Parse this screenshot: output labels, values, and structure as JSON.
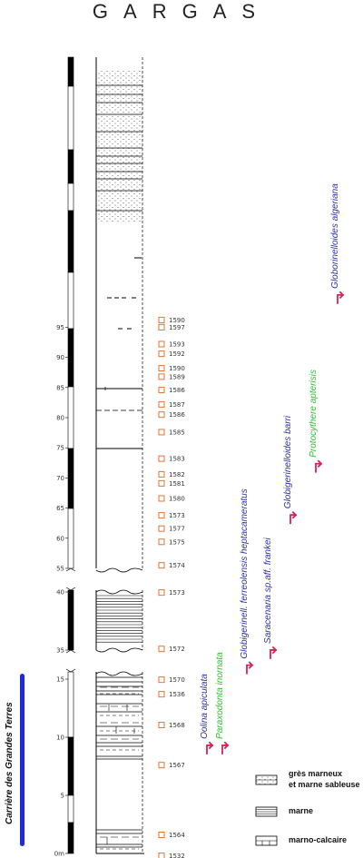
{
  "title": "GARGAS",
  "locality": "Carrière des Grandes Terres",
  "colors": {
    "sample_marker": "#e8732a",
    "arrow": "#d3245a",
    "taxon_blue": "#2e2ea8",
    "taxon_green": "#2ec02e",
    "locality_bar": "#1f2bd6"
  },
  "scale_ticks": [
    {
      "label": "95",
      "v": 95,
      "seg": "top"
    },
    {
      "label": "90",
      "v": 90,
      "seg": "top"
    },
    {
      "label": "85",
      "v": 85,
      "seg": "top"
    },
    {
      "label": "80",
      "v": 80,
      "seg": "top"
    },
    {
      "label": "75",
      "v": 75,
      "seg": "top"
    },
    {
      "label": "70",
      "v": 70,
      "seg": "top"
    },
    {
      "label": "65",
      "v": 65,
      "seg": "top"
    },
    {
      "label": "60",
      "v": 60,
      "seg": "top"
    },
    {
      "label": "55",
      "v": 55,
      "seg": "top"
    },
    {
      "label": "40",
      "v": 40,
      "seg": "mid"
    },
    {
      "label": "35",
      "v": 35,
      "seg": "mid"
    },
    {
      "label": "15",
      "v": 15,
      "seg": "bot"
    },
    {
      "label": "10",
      "v": 10,
      "seg": "bot"
    },
    {
      "label": "5",
      "v": 5,
      "seg": "bot"
    },
    {
      "label": "0m",
      "v": 0,
      "seg": "bot"
    }
  ],
  "samples": [
    {
      "id": "1590",
      "v": 96.2,
      "seg": "top"
    },
    {
      "id": "1597",
      "v": 95.0,
      "seg": "top"
    },
    {
      "id": "1593",
      "v": 92.2,
      "seg": "top"
    },
    {
      "id": "1592",
      "v": 90.6,
      "seg": "top"
    },
    {
      "id": "1590",
      "v": 88.2,
      "seg": "top"
    },
    {
      "id": "1589",
      "v": 86.8,
      "seg": "top"
    },
    {
      "id": "1586",
      "v": 84.6,
      "seg": "top"
    },
    {
      "id": "1587",
      "v": 82.2,
      "seg": "top"
    },
    {
      "id": "1586",
      "v": 80.5,
      "seg": "top"
    },
    {
      "id": "1585",
      "v": 77.6,
      "seg": "top"
    },
    {
      "id": "1583",
      "v": 73.2,
      "seg": "top"
    },
    {
      "id": "1582",
      "v": 70.6,
      "seg": "top"
    },
    {
      "id": "1581",
      "v": 69.1,
      "seg": "top"
    },
    {
      "id": "1580",
      "v": 66.6,
      "seg": "top"
    },
    {
      "id": "1573",
      "v": 63.8,
      "seg": "top"
    },
    {
      "id": "1577",
      "v": 61.6,
      "seg": "top"
    },
    {
      "id": "1575",
      "v": 59.4,
      "seg": "top"
    },
    {
      "id": "1574",
      "v": 55.5,
      "seg": "top"
    },
    {
      "id": "1573",
      "v": 39.95,
      "seg": "mid"
    },
    {
      "id": "1572",
      "v": 35.1,
      "seg": "mid"
    },
    {
      "id": "1570",
      "v": 14.95,
      "seg": "bot"
    },
    {
      "id": "1536",
      "v": 13.7,
      "seg": "bot"
    },
    {
      "id": "1568",
      "v": 11.05,
      "seg": "bot"
    },
    {
      "id": "1567",
      "v": 7.6,
      "seg": "bot"
    },
    {
      "id": "1564",
      "v": 1.6,
      "seg": "bot"
    },
    {
      "id": "1532",
      "v": -0.2,
      "seg": "bot"
    }
  ],
  "taxa": [
    {
      "name": "Globorinelloides algeriana",
      "color": "blue",
      "v": 99.0,
      "seg": "top",
      "col": 0
    },
    {
      "name": "Protocythere apterisis",
      "color": "green",
      "v": 71.0,
      "seg": "top",
      "col": 1
    },
    {
      "name": "Globigerinelloides barri",
      "color": "blue",
      "v": 62.5,
      "seg": "top",
      "col": 2
    },
    {
      "name": "Saracenaria sp.aff. frankei",
      "color": "blue",
      "v": 16.8,
      "seg": "bot",
      "col": 3
    },
    {
      "name": "Globigerinell. ferreolensis heptacameratus",
      "color": "blue",
      "v": 15.5,
      "seg": "bot",
      "col": 4
    },
    {
      "name": "Paraxodonta inornata",
      "color": "green",
      "v": 8.6,
      "seg": "bot",
      "col": 5
    },
    {
      "name": "Oolina apiculata",
      "color": "blue",
      "v": 8.6,
      "seg": "bot",
      "col": 6
    }
  ],
  "legend": [
    {
      "key": "sand",
      "label": "grès marneux et marne sableuse"
    },
    {
      "key": "marl",
      "label": "marne"
    },
    {
      "key": "marlylime",
      "label": "marno-calcaire"
    }
  ]
}
